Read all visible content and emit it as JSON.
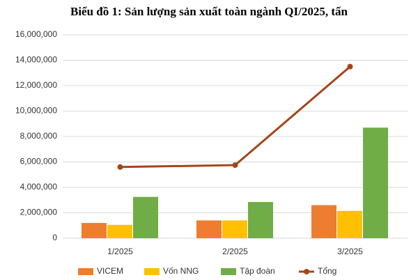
{
  "chart_data": {
    "type": "bar",
    "title": "Biểu đồ 1: Sản lượng sản xuất toàn ngành QI/2025, tấn",
    "categories": [
      "1/2025",
      "2/2025",
      "3/2025"
    ],
    "series": [
      {
        "name": "VICEM",
        "color": "#ed7d31",
        "values": [
          1200000,
          1400000,
          2600000
        ]
      },
      {
        "name": "Vốn NNG",
        "color": "#ffc000",
        "values": [
          1050000,
          1400000,
          2150000
        ]
      },
      {
        "name": "Tập đoàn",
        "color": "#70ad47",
        "values": [
          3250000,
          2850000,
          8700000
        ]
      },
      {
        "name": "Tổng",
        "color": "#a5441a",
        "type": "line",
        "values": [
          5600000,
          5750000,
          13500000
        ]
      }
    ],
    "ylim": [
      0,
      16000000
    ],
    "yticks": [
      0,
      {
        "value": 2000000,
        "label": "2,000,000"
      },
      {
        "value": 4000000,
        "label": "4,000,000"
      },
      {
        "value": 6000000,
        "label": "6,000,000"
      },
      {
        "value": 8000000,
        "label": "8,000,000"
      },
      {
        "value": 10000000,
        "label": "10,000,000"
      },
      {
        "value": 12000000,
        "label": "12,000,000"
      },
      {
        "value": 14000000,
        "label": "14,000,000"
      },
      {
        "value": 16000000,
        "label": "16,000,000"
      }
    ],
    "grid": true,
    "legend": "bottom"
  }
}
